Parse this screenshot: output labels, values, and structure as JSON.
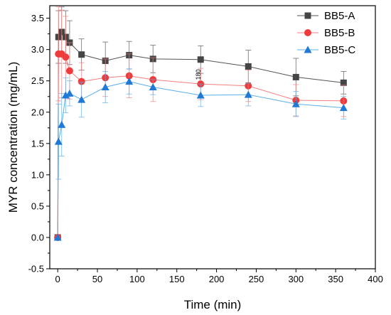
{
  "chart_data": {
    "type": "line",
    "xlabel": "Time (min)",
    "ylabel": "MYR concentration (mg/mL)",
    "xlim": [
      -10,
      400
    ],
    "ylim": [
      -0.5,
      3.7
    ],
    "xticks": [
      0,
      50,
      100,
      150,
      200,
      250,
      300,
      350,
      400
    ],
    "yticks": [
      -0.5,
      0.0,
      0.5,
      1.0,
      1.5,
      2.0,
      2.5,
      3.0,
      3.5
    ],
    "x": [
      0,
      1,
      5,
      10,
      15,
      30,
      60,
      90,
      120,
      180,
      240,
      300,
      360
    ],
    "legend_position": "top-right",
    "series": [
      {
        "name": "BB5-A",
        "marker": "square",
        "color": "#545454",
        "fill": "#454545",
        "values": [
          0.0,
          3.2,
          3.28,
          3.2,
          3.11,
          2.92,
          2.82,
          2.91,
          2.85,
          2.84,
          2.73,
          2.56,
          2.47
        ],
        "errors": [
          0.0,
          0.42,
          0.4,
          0.42,
          0.35,
          0.25,
          0.3,
          0.22,
          0.22,
          0.22,
          0.26,
          0.3,
          0.18
        ]
      },
      {
        "name": "BB5-B",
        "marker": "circle",
        "color": "#f47e7e",
        "fill": "#ee3b3b",
        "values": [
          0.0,
          2.93,
          2.93,
          2.88,
          2.66,
          2.49,
          2.55,
          2.58,
          2.52,
          2.45,
          2.42,
          2.19,
          2.18
        ],
        "errors": [
          0.0,
          0.75,
          0.7,
          0.65,
          0.45,
          0.3,
          0.3,
          0.35,
          0.35,
          0.25,
          0.25,
          0.25,
          0.25
        ]
      },
      {
        "name": "BB5-C",
        "marker": "triangle",
        "color": "#5aaee6",
        "fill": "#2079d4",
        "values": [
          0.0,
          1.53,
          1.8,
          2.27,
          2.3,
          2.2,
          2.4,
          2.49,
          2.4,
          2.27,
          2.28,
          2.13,
          2.07
        ],
        "errors": [
          0.0,
          0.6,
          0.5,
          0.28,
          0.2,
          0.28,
          0.25,
          0.2,
          0.12,
          0.18,
          0.18,
          0.2,
          0.18
        ]
      }
    ],
    "annotations": [
      {
        "text": "180",
        "x": 180,
        "y": 2.6
      }
    ]
  }
}
